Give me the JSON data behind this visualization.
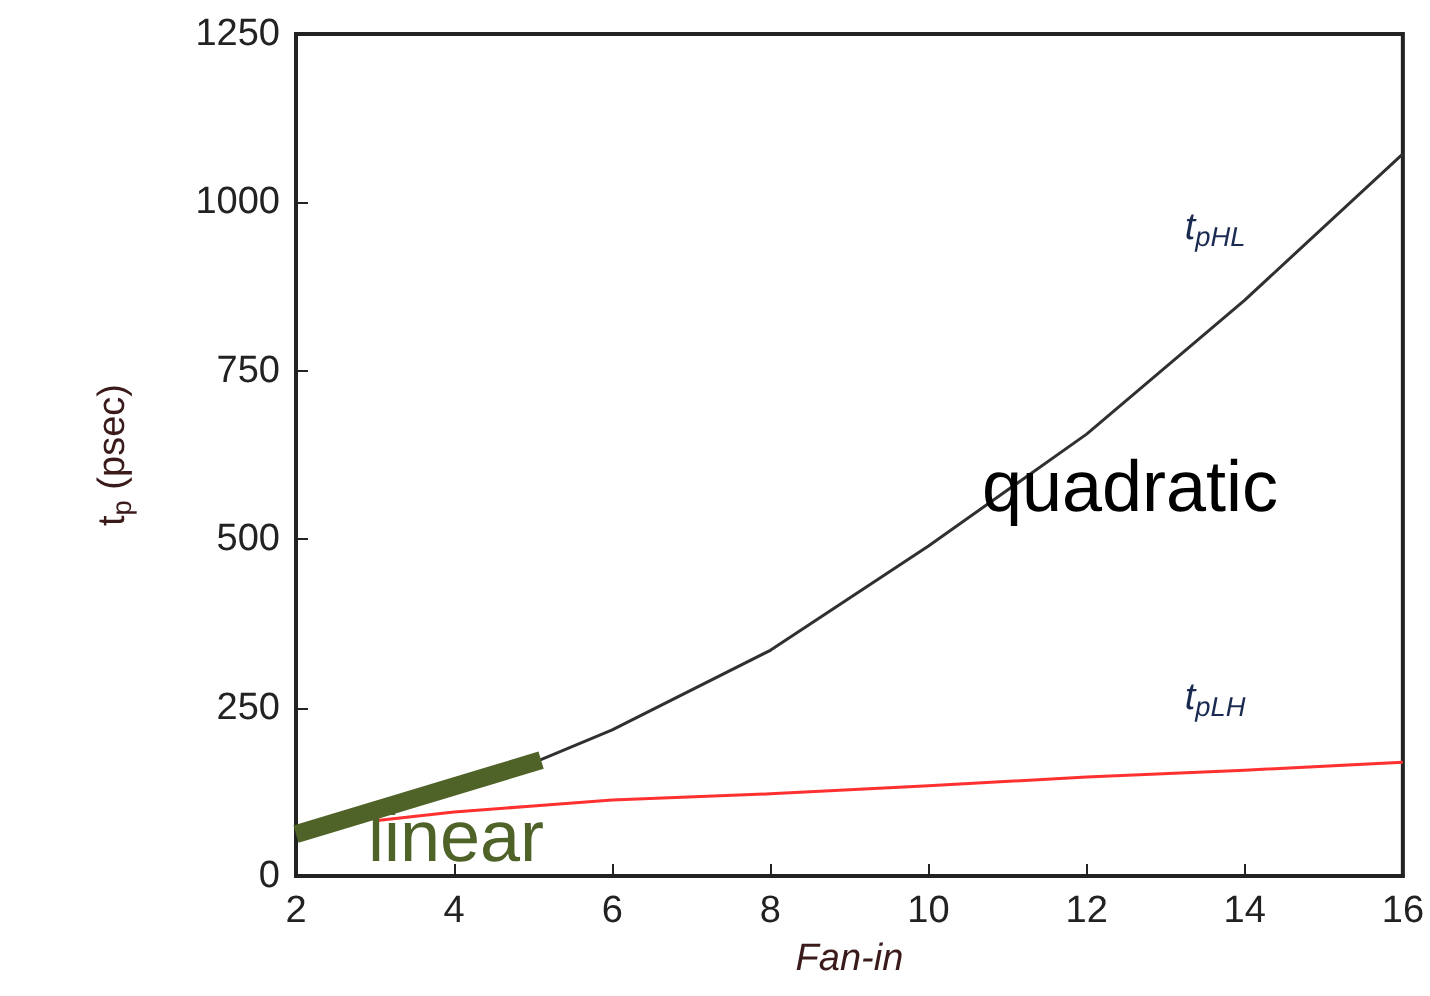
{
  "chart_data": {
    "type": "line",
    "xlabel": "Fan-in",
    "ylabel": "t$_{p}$ (psec)",
    "x": [
      2,
      3,
      4,
      5,
      6,
      8,
      10,
      12,
      14,
      16
    ],
    "series": [
      {
        "name": "t$_{pHL}$",
        "color": "#303030",
        "values": [
          62,
          96,
          130,
          168,
          217,
          335,
          490,
          656,
          855,
          1072
        ]
      },
      {
        "name": "t$_{pLH}$",
        "color": "#ff3030",
        "values": [
          null,
          82,
          95,
          104,
          113,
          122,
          134,
          147,
          157,
          169
        ]
      },
      {
        "color": "#4f6228",
        "x": [
          2,
          5.1
        ],
        "values": [
          62,
          172
        ]
      }
    ],
    "annotations": [
      "quadratic",
      "linear"
    ],
    "xlim": [
      2,
      16
    ],
    "xticks": [
      2,
      4,
      6,
      8,
      10,
      12,
      14,
      16
    ],
    "ylim": [
      0,
      1250
    ],
    "yticks": [
      0,
      250,
      500,
      750,
      1000,
      1250
    ],
    "grid": false,
    "legend": false,
    "marker": "none",
    "line_style": "solid"
  }
}
